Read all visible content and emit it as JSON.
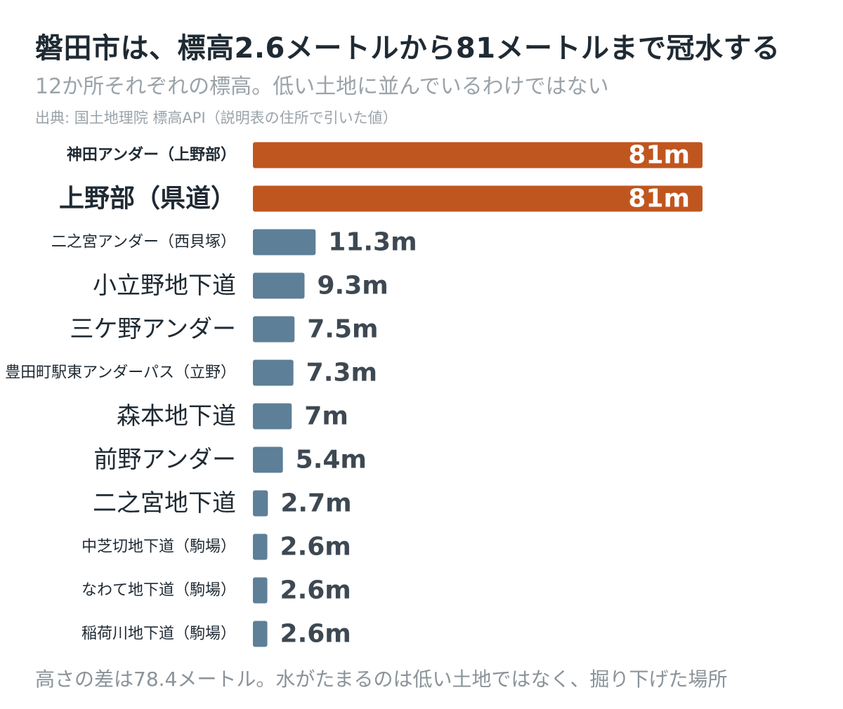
{
  "header": {
    "title": "磐田市は、標高2.6メートルから81メートルまで冠水する",
    "subtitle": "12か所それぞれの標高。低い土地に並んでいるわけではない",
    "source": "出典: 国土地理院 標高API（説明表の住所で引いた値）"
  },
  "footer": {
    "note": "高さの差は78.4メートル。水がたまるのは低い土地ではなく、掘り下げた場所"
  },
  "colors": {
    "highlight": "#c0561f",
    "normal": "#5d7f97",
    "label_text": "#1f2a33",
    "value_text": "#3d4852"
  },
  "chart_data": {
    "type": "bar",
    "orientation": "horizontal",
    "categories": [
      "神田アンダー（上野部）",
      "上野部（県道）",
      "二之宮アンダー（西貝塚）",
      "小立野地下道",
      "三ケ野アンダー",
      "豊田町駅東アンダーパス（立野）",
      "森本地下道",
      "前野アンダー",
      "二之宮地下道",
      "中芝切地下道（駒場）",
      "なわて地下道（駒場）",
      "稲荷川地下道（駒場）"
    ],
    "values": [
      81,
      81,
      11.3,
      9.3,
      7.5,
      7.3,
      7,
      5.4,
      2.7,
      2.6,
      2.6,
      2.6
    ],
    "value_labels": [
      "81m",
      "81m",
      "11.3m",
      "9.3m",
      "7.5m",
      "7.3m",
      "7m",
      "5.4m",
      "2.7m",
      "2.6m",
      "2.6m",
      "2.6m"
    ],
    "highlighted": [
      true,
      true,
      false,
      false,
      false,
      false,
      false,
      false,
      false,
      false,
      false,
      false
    ],
    "label_style": [
      "small-bold",
      "large-bold",
      "small",
      "large",
      "large",
      "small",
      "large",
      "large",
      "large",
      "small",
      "small",
      "small"
    ],
    "xlim": [
      0,
      81
    ],
    "grid": false,
    "legend": "none"
  }
}
